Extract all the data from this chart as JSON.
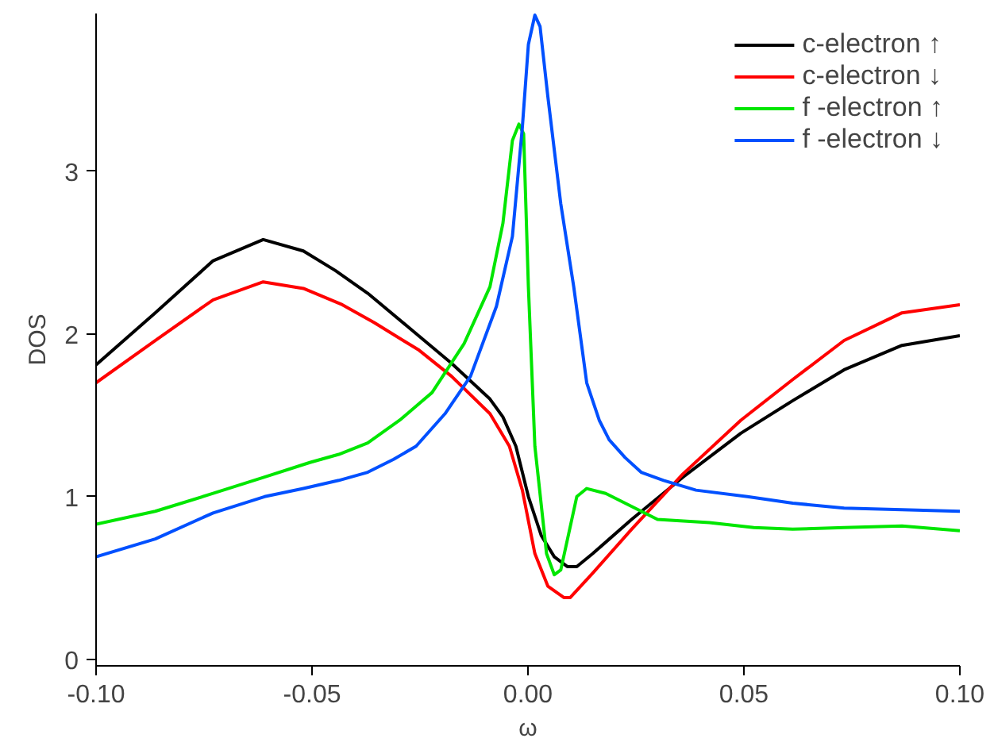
{
  "chart_data": {
    "type": "line",
    "xlabel": "ω",
    "ylabel": "DOS",
    "xlim": [
      -0.1,
      0.1
    ],
    "ylim": [
      -0.04,
      3.97
    ],
    "xticks": [
      {
        "value": -0.1,
        "label": "-0.10"
      },
      {
        "value": -0.05,
        "label": "-0.05"
      },
      {
        "value": 0,
        "label": "0.00"
      },
      {
        "value": 0.05,
        "label": "0.05"
      },
      {
        "value": 0.1,
        "label": "0.10"
      }
    ],
    "yticks": [
      0,
      1,
      2,
      3
    ],
    "grid": false,
    "legend": "top right",
    "marker": "none",
    "line_style": "solid",
    "series": [
      {
        "name": "c-electron ↑",
        "color": "#000000",
        "x": [
          -0.1,
          -0.0863,
          -0.0729,
          -0.0613,
          -0.052,
          -0.0446,
          -0.0371,
          -0.0267,
          -0.0177,
          -0.0088,
          -0.0058,
          -0.0028,
          0.0001,
          0.0031,
          0.0061,
          0.0091,
          0.0113,
          0.015,
          0.024,
          0.0359,
          0.0493,
          0.0613,
          0.0732,
          0.0866,
          0.1
        ],
        "values": [
          1.81,
          2.13,
          2.45,
          2.58,
          2.51,
          2.39,
          2.25,
          2.02,
          1.82,
          1.6,
          1.49,
          1.31,
          1.0,
          0.76,
          0.63,
          0.57,
          0.57,
          0.65,
          0.86,
          1.12,
          1.39,
          1.59,
          1.78,
          1.93,
          1.99
        ]
      },
      {
        "name": "c-electron ↓",
        "color": "#ff0000",
        "x": [
          -0.1,
          -0.0863,
          -0.0729,
          -0.0613,
          -0.052,
          -0.043,
          -0.0356,
          -0.0252,
          -0.0177,
          -0.0088,
          -0.0043,
          -0.0013,
          0.0016,
          0.0046,
          0.0083,
          0.0098,
          0.015,
          0.024,
          0.0359,
          0.0493,
          0.0613,
          0.0732,
          0.0866,
          0.1
        ],
        "values": [
          1.7,
          1.96,
          2.21,
          2.32,
          2.28,
          2.18,
          2.07,
          1.9,
          1.74,
          1.51,
          1.31,
          1.04,
          0.65,
          0.45,
          0.38,
          0.38,
          0.53,
          0.8,
          1.14,
          1.47,
          1.72,
          1.96,
          2.13,
          2.18
        ]
      },
      {
        "name": "f -electron ↑",
        "color": "#00e600",
        "x": [
          -0.1,
          -0.0863,
          -0.0729,
          -0.061,
          -0.0505,
          -0.0438,
          -0.0371,
          -0.0297,
          -0.0222,
          -0.0148,
          -0.0088,
          -0.0058,
          -0.0036,
          -0.0021,
          -0.001,
          0.0001,
          0.0016,
          0.0043,
          0.0061,
          0.0076,
          0.0113,
          0.0136,
          0.018,
          0.03,
          0.042,
          0.0523,
          0.0613,
          0.0732,
          0.0866,
          0.1
        ],
        "values": [
          0.83,
          0.91,
          1.02,
          1.12,
          1.21,
          1.26,
          1.33,
          1.47,
          1.64,
          1.94,
          2.29,
          2.68,
          3.19,
          3.29,
          3.23,
          2.29,
          1.31,
          0.65,
          0.52,
          0.55,
          1.0,
          1.05,
          1.02,
          0.86,
          0.84,
          0.81,
          0.8,
          0.81,
          0.82,
          0.79
        ]
      },
      {
        "name": "f -electron ↓",
        "color": "#0050ff",
        "x": [
          -0.1,
          -0.0863,
          -0.0729,
          -0.061,
          -0.052,
          -0.0438,
          -0.0371,
          -0.0311,
          -0.0259,
          -0.0192,
          -0.0133,
          -0.0073,
          -0.0036,
          -0.0013,
          0.0001,
          0.0016,
          0.0028,
          0.0046,
          0.0076,
          0.0106,
          0.0136,
          0.0165,
          0.0188,
          0.0225,
          0.0262,
          0.0314,
          0.0389,
          0.0508,
          0.0613,
          0.0732,
          0.0866,
          0.1
        ],
        "values": [
          0.63,
          0.74,
          0.9,
          1.0,
          1.05,
          1.1,
          1.15,
          1.23,
          1.31,
          1.51,
          1.74,
          2.17,
          2.6,
          3.27,
          3.78,
          3.96,
          3.89,
          3.46,
          2.8,
          2.29,
          1.7,
          1.47,
          1.35,
          1.24,
          1.15,
          1.1,
          1.04,
          1.0,
          0.96,
          0.93,
          0.92,
          0.91
        ]
      }
    ]
  }
}
